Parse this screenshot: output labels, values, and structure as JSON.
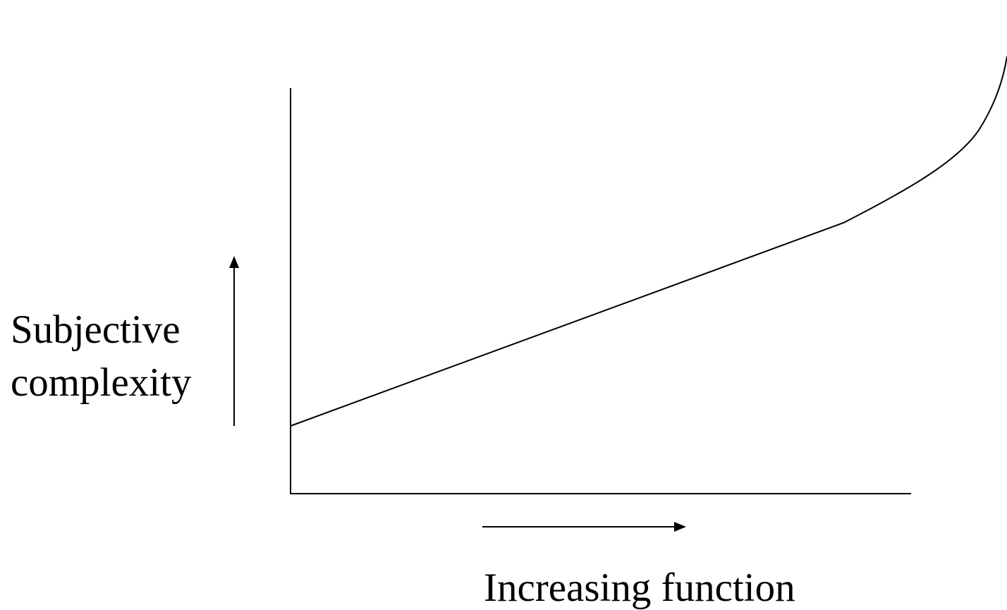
{
  "y_axis_label": {
    "lines": [
      "Subjective",
      "complexity"
    ]
  },
  "x_axis_label": "Increasing function"
}
